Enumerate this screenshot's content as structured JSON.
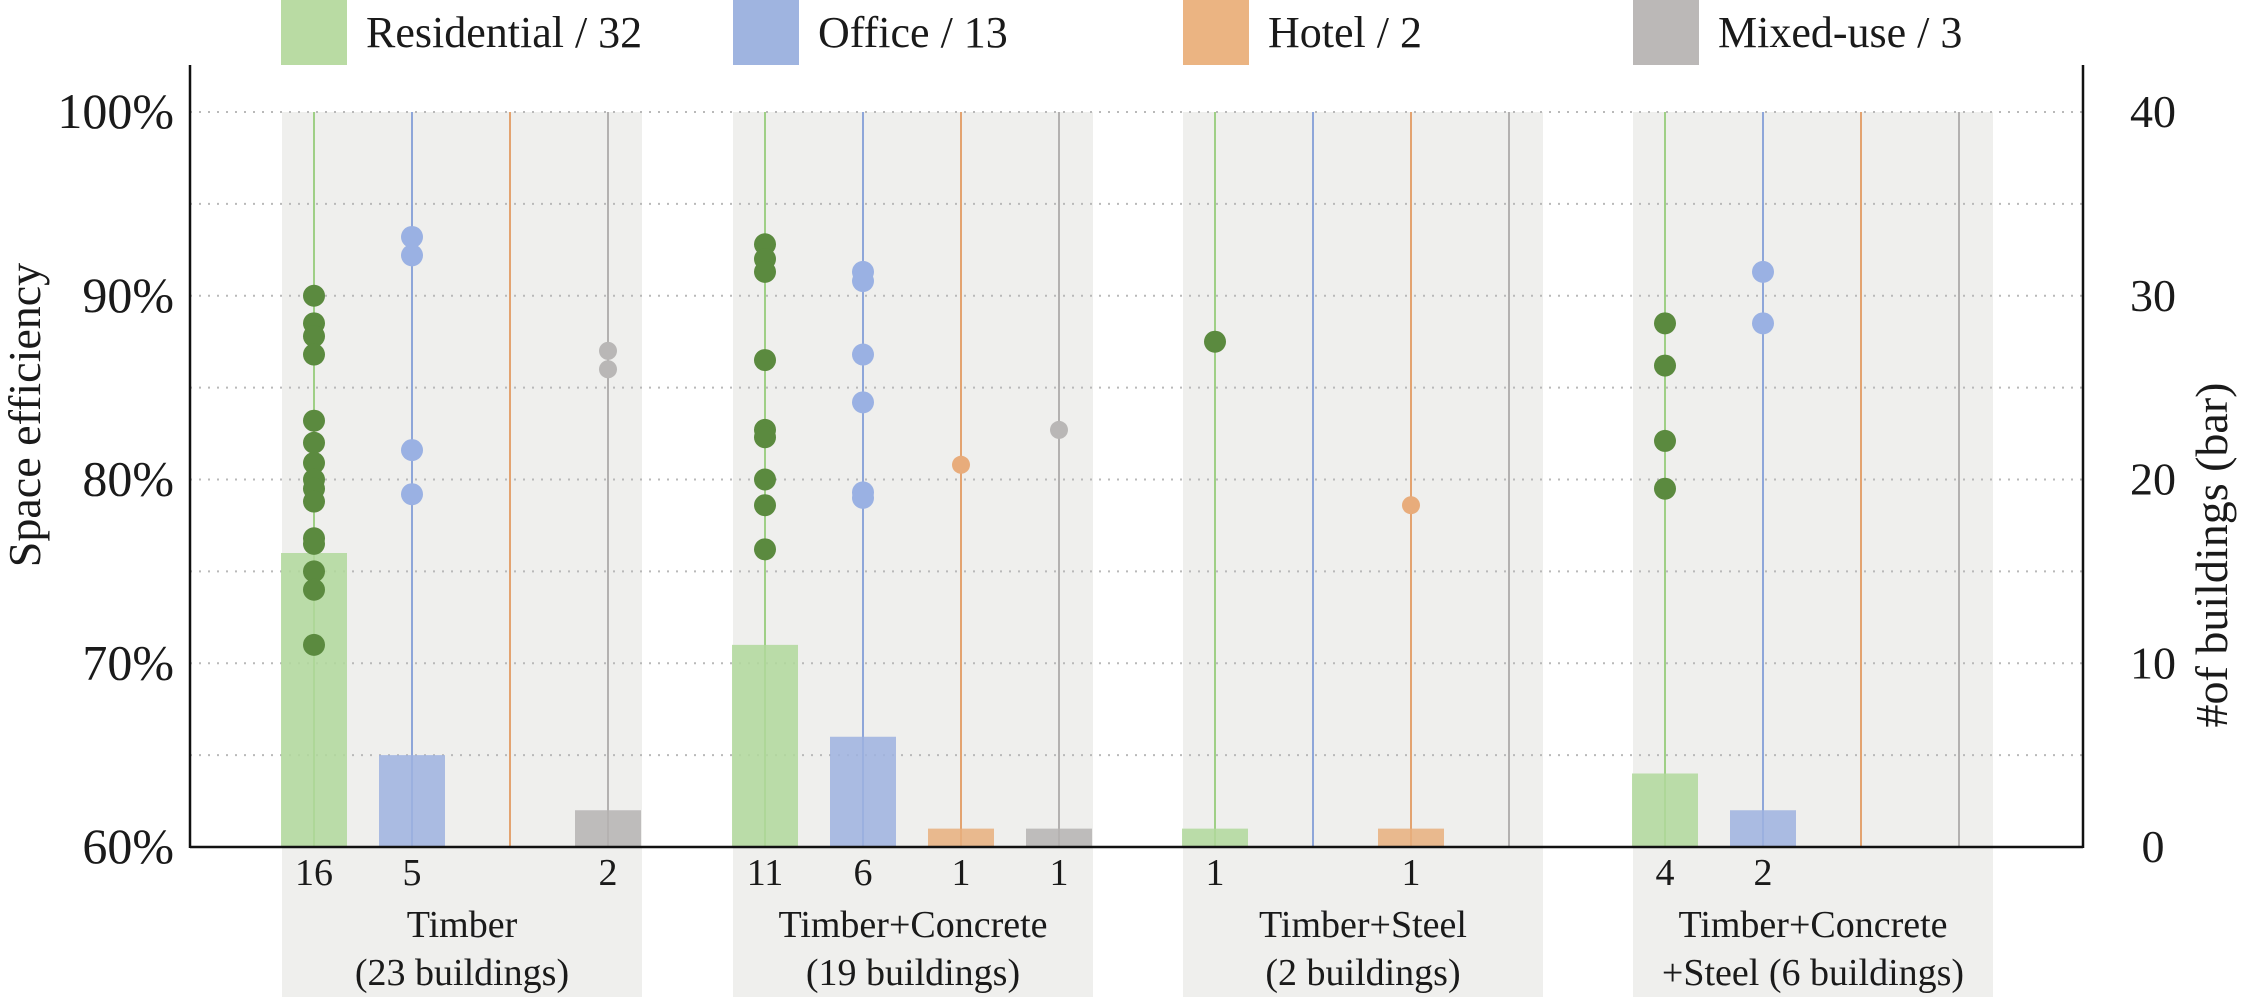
{
  "chart_data": {
    "type": "bar+scatter",
    "ylabel_left": "Space efficiency",
    "ylabel_right": "#of buildings (bar)",
    "y_left_ticks": [
      "100%",
      "90%",
      "80%",
      "70%",
      "60%"
    ],
    "y_left_range": [
      60,
      100
    ],
    "y_right_ticks": [
      "40",
      "30",
      "20",
      "10",
      "0"
    ],
    "y_right_range": [
      0,
      40
    ],
    "grid": "dotted",
    "legend_position": "top",
    "legend": [
      {
        "label": "Residential / 32",
        "color": "#b9dba3"
      },
      {
        "label": "Office / 13",
        "color": "#9fb4e0"
      },
      {
        "label": "Hotel / 2",
        "color": "#ebb482"
      },
      {
        "label": "Mixed-use / 3",
        "color": "#bbb8b7"
      }
    ],
    "series_colors": {
      "residential": {
        "bar": "#b0d89b",
        "line": "#9fcf86",
        "dot": "#5b8a3f"
      },
      "office": {
        "bar": "#9db1df",
        "line": "#8ea6d9",
        "dot": "#9ab1e3"
      },
      "hotel": {
        "bar": "#e8af7d",
        "line": "#e3a370",
        "dot": "#e8ac7b"
      },
      "mixed": {
        "bar": "#b5b3b2",
        "line": "#b3b1b0",
        "dot": "#b9b7b6"
      }
    },
    "groups": [
      {
        "label_line1": "Timber",
        "label_line2": "(23 buildings)",
        "categories": [
          {
            "series": "residential",
            "count": 16,
            "count_label": "16",
            "efficiency": [
              90.0,
              88.5,
              87.8,
              86.8,
              83.2,
              82.0,
              80.9,
              80.0,
              79.5,
              78.8,
              76.8,
              76.5,
              75.0,
              74.0,
              71.0
            ]
          },
          {
            "series": "office",
            "count": 5,
            "count_label": "5",
            "efficiency": [
              93.2,
              92.2,
              81.6,
              79.2
            ]
          },
          {
            "series": "hotel",
            "count": 0,
            "count_label": "",
            "efficiency": []
          },
          {
            "series": "mixed",
            "count": 2,
            "count_label": "2",
            "efficiency": [
              87.0,
              86.0
            ]
          }
        ]
      },
      {
        "label_line1": "Timber+Concrete",
        "label_line2": "(19 buildings)",
        "categories": [
          {
            "series": "residential",
            "count": 11,
            "count_label": "11",
            "efficiency": [
              92.8,
              92.0,
              91.3,
              86.5,
              82.7,
              82.3,
              80.0,
              78.6,
              76.2
            ]
          },
          {
            "series": "office",
            "count": 6,
            "count_label": "6",
            "efficiency": [
              91.3,
              90.8,
              86.8,
              84.2,
              79.3,
              79.0
            ]
          },
          {
            "series": "hotel",
            "count": 1,
            "count_label": "1",
            "efficiency": [
              80.8
            ]
          },
          {
            "series": "mixed",
            "count": 1,
            "count_label": "1",
            "efficiency": [
              82.7
            ]
          }
        ]
      },
      {
        "label_line1": "Timber+Steel",
        "label_line2": "(2 buildings)",
        "categories": [
          {
            "series": "residential",
            "count": 1,
            "count_label": "1",
            "efficiency": [
              87.5
            ]
          },
          {
            "series": "office",
            "count": 0,
            "count_label": "",
            "efficiency": []
          },
          {
            "series": "hotel",
            "count": 1,
            "count_label": "1",
            "efficiency": [
              78.6
            ]
          },
          {
            "series": "mixed",
            "count": 0,
            "count_label": "",
            "efficiency": []
          }
        ]
      },
      {
        "label_line1": "Timber+Concrete",
        "label_line2": "+Steel (6 buildings)",
        "categories": [
          {
            "series": "residential",
            "count": 4,
            "count_label": "4",
            "efficiency": [
              88.5,
              86.2,
              82.1,
              79.5
            ]
          },
          {
            "series": "office",
            "count": 2,
            "count_label": "2",
            "efficiency": [
              91.3,
              88.5
            ]
          },
          {
            "series": "hotel",
            "count": 0,
            "count_label": "",
            "efficiency": []
          },
          {
            "series": "mixed",
            "count": 0,
            "count_label": "",
            "efficiency": []
          }
        ]
      }
    ]
  }
}
